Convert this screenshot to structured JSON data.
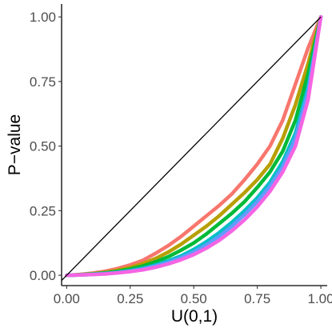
{
  "chart_data": {
    "type": "line",
    "title": "",
    "xlabel": "U(0,1)",
    "ylabel": "P−value",
    "xlim": [
      -0.02,
      1.025
    ],
    "ylim": [
      -0.04,
      1.05
    ],
    "grid": false,
    "legend": "none",
    "xticks": [
      0.0,
      0.25,
      0.5,
      0.75,
      1.0
    ],
    "xtick_labels": [
      "0.00",
      "0.25",
      "0.50",
      "0.75",
      "1.00"
    ],
    "yticks": [
      0.0,
      0.25,
      0.5,
      0.75,
      1.0
    ],
    "ytick_labels": [
      "0.00",
      "0.25",
      "0.50",
      "0.75",
      "1.00"
    ],
    "reference_line": {
      "x": [
        -0.02,
        1.0
      ],
      "y": [
        -0.02,
        1.0
      ],
      "color": "#000000"
    },
    "x": [
      0.0,
      0.05,
      0.1,
      0.15,
      0.2,
      0.25,
      0.3,
      0.35,
      0.4,
      0.45,
      0.5,
      0.55,
      0.6,
      0.65,
      0.7,
      0.75,
      0.8,
      0.85,
      0.9,
      0.95,
      1.0
    ],
    "series": [
      {
        "color": "#F8766D",
        "values": [
          0.0,
          0.003,
          0.008,
          0.015,
          0.026,
          0.04,
          0.058,
          0.085,
          0.115,
          0.15,
          0.19,
          0.23,
          0.27,
          0.315,
          0.37,
          0.43,
          0.5,
          0.6,
          0.74,
          0.88,
          1.0
        ]
      },
      {
        "color": "#B79F00",
        "values": [
          0.0,
          0.002,
          0.006,
          0.011,
          0.019,
          0.03,
          0.045,
          0.065,
          0.09,
          0.12,
          0.155,
          0.19,
          0.23,
          0.275,
          0.32,
          0.37,
          0.43,
          0.53,
          0.66,
          0.82,
          1.0
        ]
      },
      {
        "color": "#00BA38",
        "values": [
          0.0,
          0.002,
          0.005,
          0.009,
          0.015,
          0.024,
          0.036,
          0.052,
          0.072,
          0.097,
          0.125,
          0.16,
          0.2,
          0.24,
          0.285,
          0.34,
          0.4,
          0.48,
          0.6,
          0.78,
          1.0
        ]
      },
      {
        "color": "#00BFC4",
        "values": [
          0.0,
          0.001,
          0.004,
          0.007,
          0.011,
          0.018,
          0.027,
          0.04,
          0.056,
          0.075,
          0.1,
          0.13,
          0.165,
          0.205,
          0.25,
          0.3,
          0.36,
          0.44,
          0.55,
          0.73,
          1.0
        ]
      },
      {
        "color": "#619CFF",
        "values": [
          0.0,
          0.001,
          0.003,
          0.006,
          0.01,
          0.016,
          0.024,
          0.036,
          0.05,
          0.068,
          0.09,
          0.118,
          0.15,
          0.19,
          0.235,
          0.285,
          0.345,
          0.42,
          0.53,
          0.71,
          1.0
        ]
      },
      {
        "color": "#F564E3",
        "values": [
          0.0,
          0.001,
          0.003,
          0.005,
          0.009,
          0.014,
          0.021,
          0.031,
          0.044,
          0.06,
          0.08,
          0.105,
          0.135,
          0.172,
          0.215,
          0.265,
          0.325,
          0.4,
          0.5,
          0.68,
          1.0
        ]
      }
    ]
  }
}
